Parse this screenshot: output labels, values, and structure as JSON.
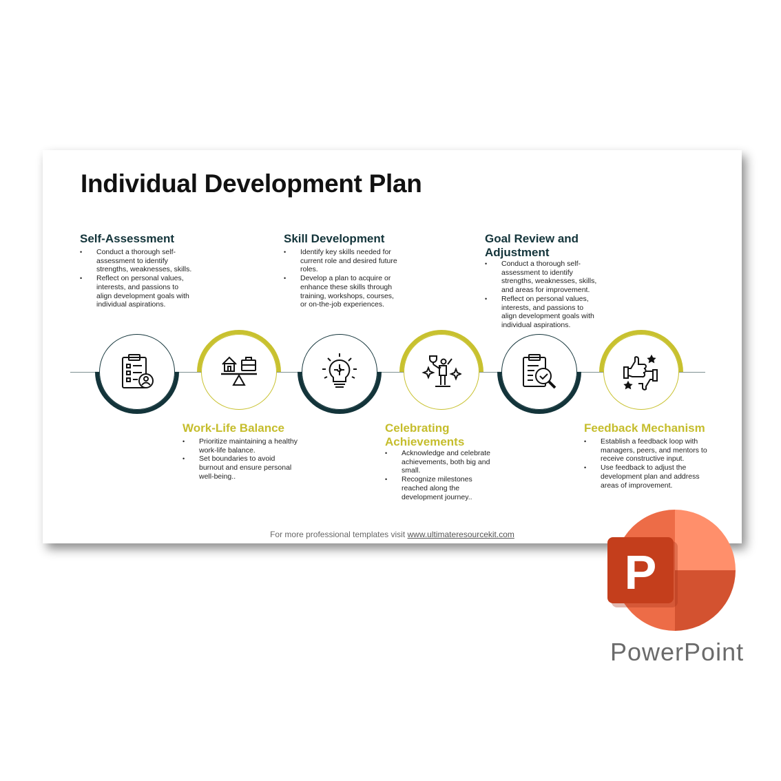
{
  "slide": {
    "title": "Individual Development Plan",
    "sections": {
      "self_assessment": {
        "heading": "Self-Assessment",
        "bullets": [
          "Conduct a thorough self-assessment to identify strengths, weaknesses, skills.",
          "Reflect on personal values, interests, and passions to align development goals with individual aspirations."
        ]
      },
      "work_life": {
        "heading": "Work-Life Balance",
        "bullets": [
          "Prioritize maintaining a healthy work-life balance.",
          "Set boundaries to avoid burnout and ensure personal well-being.."
        ]
      },
      "skill_dev": {
        "heading": "Skill Development",
        "bullets": [
          "Identify key skills needed for current role and desired future roles.",
          "Develop a plan to acquire or enhance these skills through training, workshops, courses, or on-the-job experiences."
        ]
      },
      "celebrating": {
        "heading": "Celebrating Achievements",
        "bullets": [
          "Acknowledge and celebrate achievements, both big and small.",
          "Recognize milestones reached along the development journey.."
        ]
      },
      "goal_review": {
        "heading": "Goal Review and Adjustment",
        "bullets": [
          "Conduct a thorough self-assessment to identify strengths, weaknesses, skills, and areas for improvement.",
          "Reflect on personal values, interests, and passions to align development goals with individual aspirations."
        ]
      },
      "feedback": {
        "heading": "Feedback Mechanism",
        "bullets": [
          "Establish a feedback loop with managers, peers, and mentors to receive constructive input.",
          "Use feedback to adjust the development plan and address areas of improvement."
        ]
      }
    },
    "icons": [
      "checklist-user-icon",
      "home-briefcase-balance-icon",
      "lightbulb-puzzle-icon",
      "trophy-person-icon",
      "clipboard-magnifier-icon",
      "thumbs-up-down-icon"
    ],
    "footer_text": "For more professional templates visit ",
    "footer_link": "www.ultimateresourcekit.com"
  },
  "app_badge": {
    "logo_letter": "P",
    "label": "PowerPoint"
  },
  "colors": {
    "dark": "#13343a",
    "olive": "#c8c12f",
    "pp_red": "#c43e1c",
    "pp_orange": "#ed6c47"
  }
}
